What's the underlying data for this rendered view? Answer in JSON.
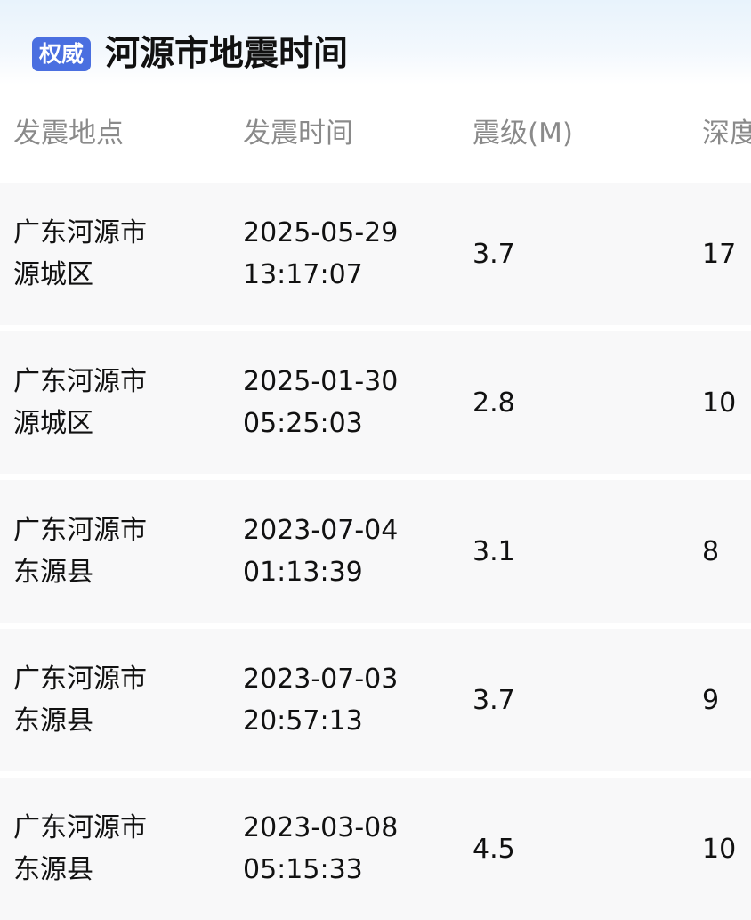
{
  "header": {
    "badge": "权威",
    "title": "河源市地震时间"
  },
  "columns": [
    "发震地点",
    "发震时间",
    "震级(M)",
    "深度"
  ],
  "rows": [
    {
      "location": [
        "广东河源市",
        "源城区"
      ],
      "time": [
        "2025-05-29",
        "13:17:07"
      ],
      "magnitude": "3.7",
      "depth": "17"
    },
    {
      "location": [
        "广东河源市",
        "源城区"
      ],
      "time": [
        "2025-01-30",
        "05:25:03"
      ],
      "magnitude": "2.8",
      "depth": "10"
    },
    {
      "location": [
        "广东河源市",
        "东源县"
      ],
      "time": [
        "2023-07-04",
        "01:13:39"
      ],
      "magnitude": "3.1",
      "depth": "8"
    },
    {
      "location": [
        "广东河源市",
        "东源县"
      ],
      "time": [
        "2023-07-03",
        "20:57:13"
      ],
      "magnitude": "3.7",
      "depth": "9"
    },
    {
      "location": [
        "广东河源市",
        "东源县"
      ],
      "time": [
        "2023-03-08",
        "05:15:33"
      ],
      "magnitude": "4.5",
      "depth": "10"
    }
  ],
  "colors": {
    "badge": "#4a6fe0",
    "header_text": "#8a8a8a",
    "row_bg": "#f8f8f9"
  }
}
